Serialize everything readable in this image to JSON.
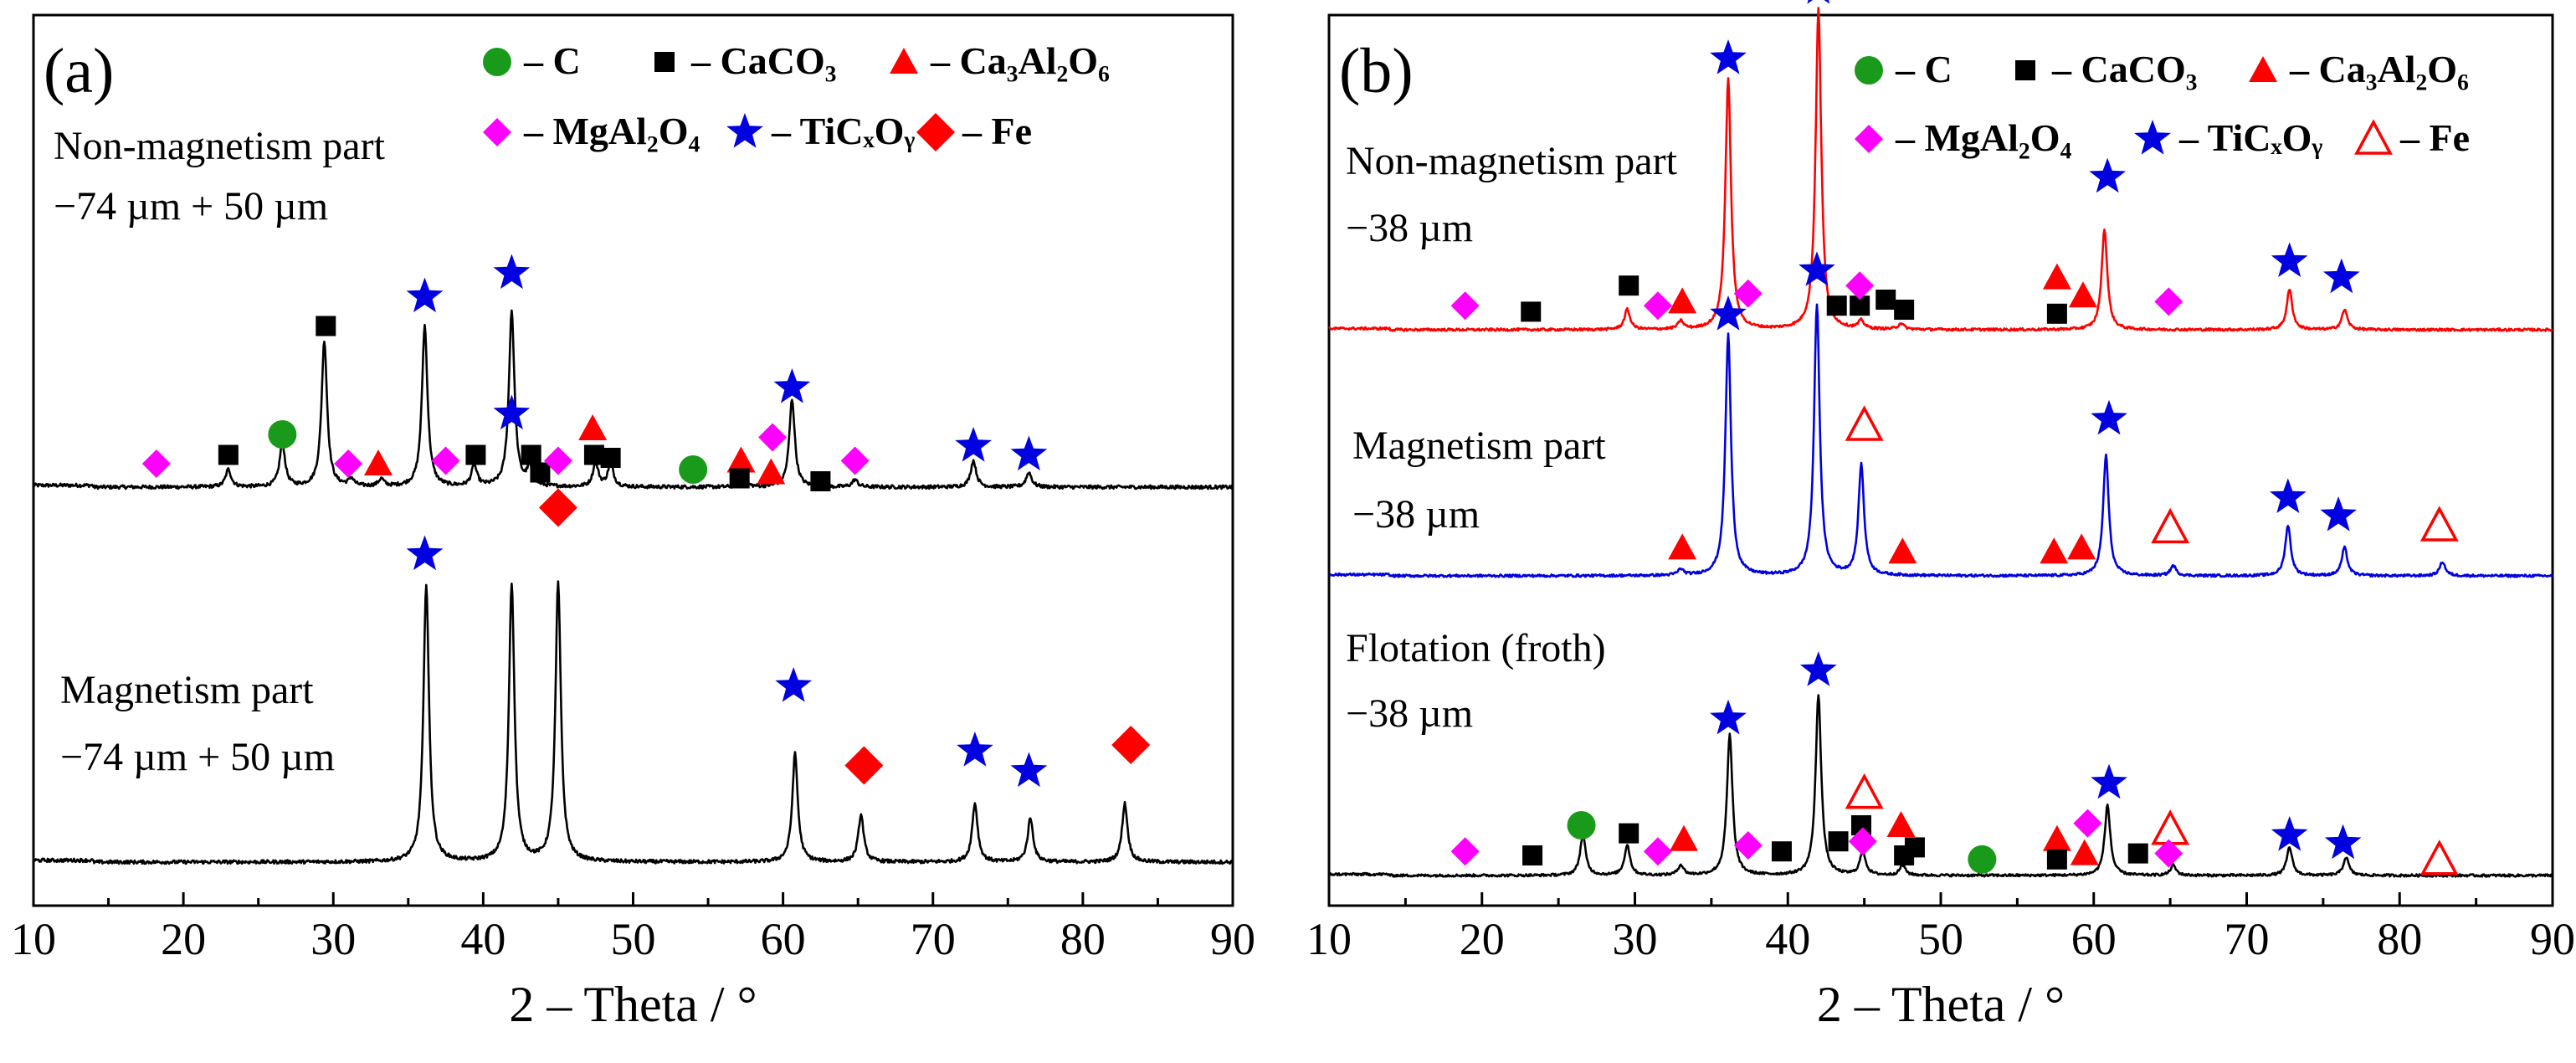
{
  "chart_data": [
    {
      "panel": "(a)",
      "type": "line",
      "xlabel": "2 – Theta / °",
      "xlim": [
        10,
        90
      ],
      "x_ticks": [
        "10",
        "20",
        "30",
        "40",
        "50",
        "60",
        "70",
        "80",
        "90"
      ],
      "grid": false,
      "legend": [
        {
          "marker": "circle",
          "color": "#1a9a1a",
          "label": "– C"
        },
        {
          "marker": "square",
          "color": "#000000",
          "label": "– CaCO₃"
        },
        {
          "marker": "triangle",
          "color": "#ff0000",
          "label": "– Ca₃Al₂O₆"
        },
        {
          "marker": "diamond",
          "color": "#ff00ff",
          "label": "– MgAl₂O₄"
        },
        {
          "marker": "star",
          "color": "#0000e0",
          "label": "– TiCₓOᵧ"
        },
        {
          "marker": "bigdiamond",
          "color": "#ff0000",
          "label": "– Fe"
        }
      ],
      "series": [
        {
          "name": "Non-magnetism part",
          "sample_line1": "Non-magnetism part",
          "sample_line2": "−74 µm + 50 µm",
          "color": "#000000",
          "baseline_offset": 3.0,
          "peaks": [
            {
              "x": 23.0,
              "h": 0.06
            },
            {
              "x": 26.6,
              "h": 0.15
            },
            {
              "x": 29.4,
              "h": 0.5
            },
            {
              "x": 31.2,
              "h": 0.025
            },
            {
              "x": 33.2,
              "h": 0.025
            },
            {
              "x": 36.1,
              "h": 0.55
            },
            {
              "x": 39.4,
              "h": 0.07
            },
            {
              "x": 41.9,
              "h": 0.6
            },
            {
              "x": 43.1,
              "h": 0.06
            },
            {
              "x": 47.5,
              "h": 0.08
            },
            {
              "x": 48.5,
              "h": 0.08
            },
            {
              "x": 57.4,
              "h": 0.03
            },
            {
              "x": 60.6,
              "h": 0.3
            },
            {
              "x": 64.8,
              "h": 0.025
            },
            {
              "x": 72.7,
              "h": 0.09
            },
            {
              "x": 76.4,
              "h": 0.05
            }
          ],
          "markers": [
            {
              "type": "diamond",
              "x": 18.2,
              "y": 0.08
            },
            {
              "type": "square",
              "x": 23.0,
              "y": 0.11
            },
            {
              "type": "circle",
              "x": 26.6,
              "y": 0.18
            },
            {
              "type": "square",
              "x": 29.5,
              "y": 0.55
            },
            {
              "type": "diamond",
              "x": 31.0,
              "y": 0.08
            },
            {
              "type": "triangle",
              "x": 33.0,
              "y": 0.08
            },
            {
              "type": "star",
              "x": 36.1,
              "y": 0.65
            },
            {
              "type": "diamond",
              "x": 37.5,
              "y": 0.09
            },
            {
              "type": "square",
              "x": 39.5,
              "y": 0.11
            },
            {
              "type": "star",
              "x": 41.9,
              "y": 0.73
            },
            {
              "type": "square",
              "x": 43.2,
              "y": 0.11
            },
            {
              "type": "square",
              "x": 43.8,
              "y": 0.05
            },
            {
              "type": "diamond",
              "x": 45.0,
              "y": 0.09
            },
            {
              "type": "triangle",
              "x": 47.3,
              "y": 0.2
            },
            {
              "type": "square",
              "x": 47.4,
              "y": 0.11
            },
            {
              "type": "square",
              "x": 48.5,
              "y": 0.1
            },
            {
              "type": "circle",
              "x": 54.0,
              "y": 0.06
            },
            {
              "type": "triangle",
              "x": 57.2,
              "y": 0.09
            },
            {
              "type": "square",
              "x": 57.1,
              "y": 0.03
            },
            {
              "type": "triangle",
              "x": 59.2,
              "y": 0.05
            },
            {
              "type": "diamond",
              "x": 59.3,
              "y": 0.17
            },
            {
              "type": "star",
              "x": 60.6,
              "y": 0.34
            },
            {
              "type": "square",
              "x": 62.5,
              "y": 0.02
            },
            {
              "type": "diamond",
              "x": 64.8,
              "y": 0.09
            },
            {
              "type": "star",
              "x": 72.7,
              "y": 0.14
            },
            {
              "type": "star",
              "x": 76.4,
              "y": 0.11
            }
          ]
        },
        {
          "name": "Magnetism part",
          "sample_line1": "Magnetism part",
          "sample_line2": "−74 µm + 50 µm",
          "color": "#000000",
          "baseline_offset": 0.0,
          "peaks": [
            {
              "x": 36.2,
              "h": 0.95
            },
            {
              "x": 41.9,
              "h": 0.95
            },
            {
              "x": 45.0,
              "h": 0.95
            },
            {
              "x": 60.8,
              "h": 0.37
            },
            {
              "x": 65.2,
              "h": 0.16
            },
            {
              "x": 72.8,
              "h": 0.2
            },
            {
              "x": 76.5,
              "h": 0.15
            },
            {
              "x": 82.8,
              "h": 0.2
            }
          ],
          "markers": [
            {
              "type": "star",
              "x": 36.1,
              "y": 1.05
            },
            {
              "type": "star",
              "x": 41.9,
              "y": 1.53
            },
            {
              "type": "bigdiamond",
              "x": 45.0,
              "y": 1.21
            },
            {
              "type": "star",
              "x": 60.7,
              "y": 0.6
            },
            {
              "type": "bigdiamond",
              "x": 65.4,
              "y": 0.33
            },
            {
              "type": "star",
              "x": 72.8,
              "y": 0.38
            },
            {
              "type": "star",
              "x": 76.4,
              "y": 0.31
            },
            {
              "type": "bigdiamond",
              "x": 83.2,
              "y": 0.4
            }
          ]
        }
      ]
    },
    {
      "panel": "(b)",
      "type": "line",
      "xlabel": "2 – Theta / °",
      "xlim": [
        10,
        90
      ],
      "x_ticks": [
        "10",
        "20",
        "30",
        "40",
        "50",
        "60",
        "70",
        "80",
        "90"
      ],
      "grid": false,
      "legend": [
        {
          "marker": "circle",
          "color": "#1a9a1a",
          "label": "– C"
        },
        {
          "marker": "square",
          "color": "#000000",
          "label": "– CaCO₃"
        },
        {
          "marker": "triangle",
          "color": "#ff0000",
          "label": "– Ca₃Al₂O₆"
        },
        {
          "marker": "diamond",
          "color": "#ff00ff",
          "label": "– MgAl₂O₄"
        },
        {
          "marker": "star",
          "color": "#0000e0",
          "label": "– TiCₓOᵧ"
        },
        {
          "marker": "opentriangle",
          "color": "#ff0000",
          "label": "– Fe"
        }
      ],
      "series": [
        {
          "name": "Non-magnetism part",
          "sample_line1": "Non-magnetism part",
          "sample_line2": "−38 µm",
          "color": "#ff0000",
          "baseline_offset": 3.65,
          "peaks": [
            {
              "x": 29.5,
              "h": 0.1
            },
            {
              "x": 33.0,
              "h": 0.04
            },
            {
              "x": 36.1,
              "h": 1.25
            },
            {
              "x": 42.0,
              "h": 1.6
            },
            {
              "x": 44.8,
              "h": 0.04
            },
            {
              "x": 47.4,
              "h": 0.03
            },
            {
              "x": 60.7,
              "h": 0.5
            },
            {
              "x": 72.8,
              "h": 0.2
            },
            {
              "x": 76.4,
              "h": 0.1
            }
          ],
          "markers": [
            {
              "type": "diamond",
              "x": 18.9,
              "y": 0.12
            },
            {
              "type": "square",
              "x": 23.2,
              "y": 0.09
            },
            {
              "type": "square",
              "x": 29.6,
              "y": 0.22
            },
            {
              "type": "diamond",
              "x": 31.5,
              "y": 0.12
            },
            {
              "type": "triangle",
              "x": 33.1,
              "y": 0.14
            },
            {
              "type": "star",
              "x": 36.1,
              "y": 1.35
            },
            {
              "type": "diamond",
              "x": 37.4,
              "y": 0.18
            },
            {
              "type": "star",
              "x": 42.0,
              "y": 1.7
            },
            {
              "type": "square",
              "x": 43.2,
              "y": 0.12
            },
            {
              "type": "square",
              "x": 44.7,
              "y": 0.12
            },
            {
              "type": "diamond",
              "x": 44.7,
              "y": 0.22
            },
            {
              "type": "square",
              "x": 46.4,
              "y": 0.15
            },
            {
              "type": "square",
              "x": 47.6,
              "y": 0.1
            },
            {
              "type": "triangle",
              "x": 57.6,
              "y": 0.26
            },
            {
              "type": "square",
              "x": 57.6,
              "y": 0.08
            },
            {
              "type": "triangle",
              "x": 59.3,
              "y": 0.17
            },
            {
              "type": "star",
              "x": 60.9,
              "y": 0.76
            },
            {
              "type": "diamond",
              "x": 64.9,
              "y": 0.14
            },
            {
              "type": "star",
              "x": 72.8,
              "y": 0.34
            },
            {
              "type": "star",
              "x": 76.2,
              "y": 0.26
            }
          ]
        },
        {
          "name": "Magnetism part",
          "sample_line1": "Magnetism part",
          "sample_line2": "−38 µm",
          "color": "#0000e0",
          "baseline_offset": 1.83,
          "peaks": [
            {
              "x": 33.0,
              "h": 0.03
            },
            {
              "x": 36.1,
              "h": 1.2
            },
            {
              "x": 41.9,
              "h": 1.35
            },
            {
              "x": 44.8,
              "h": 0.55
            },
            {
              "x": 60.8,
              "h": 0.6
            },
            {
              "x": 65.2,
              "h": 0.05
            },
            {
              "x": 72.7,
              "h": 0.25
            },
            {
              "x": 76.4,
              "h": 0.14
            },
            {
              "x": 82.8,
              "h": 0.07
            }
          ],
          "markers": [
            {
              "type": "triangle",
              "x": 33.1,
              "y": 0.14
            },
            {
              "type": "star",
              "x": 36.1,
              "y": 1.3
            },
            {
              "type": "star",
              "x": 41.9,
              "y": 1.52
            },
            {
              "type": "opentriangle",
              "x": 45.0,
              "y": 0.75
            },
            {
              "type": "triangle",
              "x": 47.5,
              "y": 0.12
            },
            {
              "type": "triangle",
              "x": 57.4,
              "y": 0.12
            },
            {
              "type": "triangle",
              "x": 59.2,
              "y": 0.14
            },
            {
              "type": "star",
              "x": 61.0,
              "y": 0.78
            },
            {
              "type": "opentriangle",
              "x": 65.0,
              "y": 0.24
            },
            {
              "type": "star",
              "x": 72.7,
              "y": 0.39
            },
            {
              "type": "star",
              "x": 76.0,
              "y": 0.3
            },
            {
              "type": "opentriangle",
              "x": 82.6,
              "y": 0.25
            }
          ]
        },
        {
          "name": "Flotation (froth)",
          "sample_line1": "Flotation (froth)",
          "sample_line2": "−38 µm",
          "color": "#000000",
          "baseline_offset": 0.0,
          "peaks": [
            {
              "x": 26.6,
              "h": 0.2
            },
            {
              "x": 29.5,
              "h": 0.15
            },
            {
              "x": 33.0,
              "h": 0.05
            },
            {
              "x": 36.2,
              "h": 0.7
            },
            {
              "x": 42.0,
              "h": 0.9
            },
            {
              "x": 44.9,
              "h": 0.12
            },
            {
              "x": 47.5,
              "h": 0.05
            },
            {
              "x": 60.9,
              "h": 0.35
            },
            {
              "x": 65.2,
              "h": 0.05
            },
            {
              "x": 72.8,
              "h": 0.14
            },
            {
              "x": 76.5,
              "h": 0.09
            }
          ],
          "markers": [
            {
              "type": "diamond",
              "x": 18.9,
              "y": 0.12
            },
            {
              "type": "square",
              "x": 23.3,
              "y": 0.1
            },
            {
              "type": "circle",
              "x": 26.5,
              "y": 0.25
            },
            {
              "type": "square",
              "x": 29.6,
              "y": 0.21
            },
            {
              "type": "diamond",
              "x": 31.5,
              "y": 0.12
            },
            {
              "type": "triangle",
              "x": 33.2,
              "y": 0.18
            },
            {
              "type": "star",
              "x": 36.1,
              "y": 0.78
            },
            {
              "type": "diamond",
              "x": 37.4,
              "y": 0.15
            },
            {
              "type": "square",
              "x": 39.6,
              "y": 0.12
            },
            {
              "type": "star",
              "x": 42.0,
              "y": 1.02
            },
            {
              "type": "square",
              "x": 43.3,
              "y": 0.17
            },
            {
              "type": "opentriangle",
              "x": 45.0,
              "y": 0.41
            },
            {
              "type": "square",
              "x": 44.8,
              "y": 0.25
            },
            {
              "type": "diamond",
              "x": 44.9,
              "y": 0.17
            },
            {
              "type": "triangle",
              "x": 47.4,
              "y": 0.25
            },
            {
              "type": "square",
              "x": 47.6,
              "y": 0.1
            },
            {
              "type": "square",
              "x": 48.3,
              "y": 0.14
            },
            {
              "type": "circle",
              "x": 52.7,
              "y": 0.08
            },
            {
              "type": "triangle",
              "x": 57.6,
              "y": 0.18
            },
            {
              "type": "square",
              "x": 57.6,
              "y": 0.08
            },
            {
              "type": "triangle",
              "x": 59.4,
              "y": 0.11
            },
            {
              "type": "diamond",
              "x": 59.6,
              "y": 0.26
            },
            {
              "type": "star",
              "x": 61.0,
              "y": 0.46
            },
            {
              "type": "square",
              "x": 62.9,
              "y": 0.11
            },
            {
              "type": "opentriangle",
              "x": 65.0,
              "y": 0.23
            },
            {
              "type": "diamond",
              "x": 64.9,
              "y": 0.11
            },
            {
              "type": "star",
              "x": 72.8,
              "y": 0.2
            },
            {
              "type": "star",
              "x": 76.3,
              "y": 0.16
            },
            {
              "type": "opentriangle",
              "x": 82.6,
              "y": 0.08
            }
          ]
        }
      ]
    }
  ]
}
